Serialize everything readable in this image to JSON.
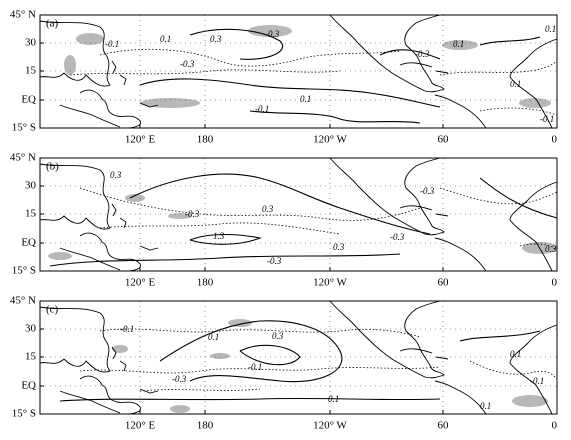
{
  "lat_labels": [
    "45° N",
    "30",
    "15",
    "EQ",
    "15° S"
  ],
  "lon_labels": [
    "120° E",
    "180",
    "120° W",
    "60",
    "0"
  ],
  "panels": [
    {
      "label": "(a)",
      "contour_labels": [
        "-0.1",
        "0.1",
        "0.3",
        "-0.3",
        "-0.3",
        "0.1",
        "-0.1",
        "-0.3",
        "0.1",
        "-0.1",
        "0.1",
        "0.1"
      ]
    },
    {
      "label": "(b)",
      "contour_labels": [
        "0.3",
        "-0.3",
        "1.3",
        "0.3",
        "-0.3",
        "0.3",
        "-0.3",
        "-0.3",
        "0.3"
      ]
    },
    {
      "label": "(c)",
      "contour_labels": [
        "-0.1",
        "0.1",
        "-0.1",
        "0.3",
        "-0.3",
        "0.1",
        "0.1",
        "-0.1",
        "0.1"
      ]
    }
  ]
}
